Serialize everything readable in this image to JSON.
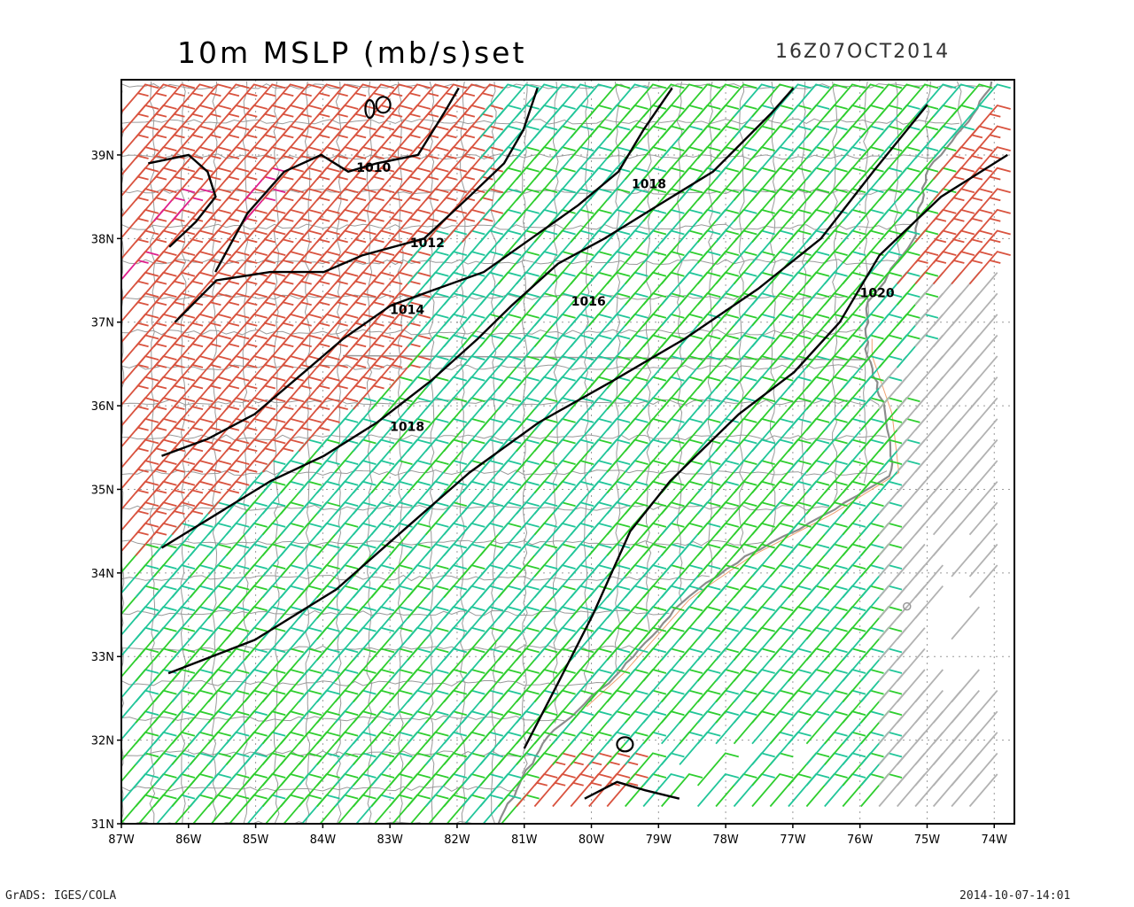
{
  "title": "10m MSLP (mb/s)set",
  "valid_time": "16Z07OCT2014",
  "footer_left": "GrADS: IGES/COLA",
  "footer_right": "2014-10-07-14:01",
  "map": {
    "lon_range": [
      -87,
      -73.7
    ],
    "lat_range": [
      31,
      39.9
    ],
    "lon_labels": [
      "87W",
      "86W",
      "85W",
      "84W",
      "83W",
      "82W",
      "81W",
      "80W",
      "79W",
      "78W",
      "77W",
      "76W",
      "75W",
      "74W"
    ],
    "lat_labels": [
      "31N",
      "32N",
      "33N",
      "34N",
      "35N",
      "36N",
      "37N",
      "38N",
      "39N"
    ],
    "isobar_labels": [
      {
        "text": "1010",
        "lon": -83.5,
        "lat": 38.8
      },
      {
        "text": "1012",
        "lon": -82.7,
        "lat": 37.9
      },
      {
        "text": "1014",
        "lon": -83.0,
        "lat": 37.1
      },
      {
        "text": "1016",
        "lon": -80.3,
        "lat": 37.2
      },
      {
        "text": "1018",
        "lon": -79.4,
        "lat": 38.6
      },
      {
        "text": "1018",
        "lon": -83.0,
        "lat": 35.7
      },
      {
        "text": "1020",
        "lon": -76.0,
        "lat": 37.3
      }
    ],
    "isobars": [
      {
        "value": "1010",
        "points": [
          [
            -86.6,
            38.9
          ],
          [
            -86.0,
            39.0
          ],
          [
            -85.7,
            38.8
          ],
          [
            -85.6,
            38.5
          ],
          [
            -85.9,
            38.2
          ],
          [
            -86.3,
            37.9
          ]
        ]
      },
      {
        "value": "1010",
        "points": [
          [
            -85.6,
            37.6
          ],
          [
            -85.1,
            38.3
          ],
          [
            -84.6,
            38.8
          ],
          [
            -84.0,
            39.0
          ],
          [
            -83.6,
            38.8
          ],
          [
            -83.2,
            38.9
          ],
          [
            -82.6,
            39.0
          ],
          [
            -82.2,
            39.5
          ],
          [
            -82.0,
            39.8
          ]
        ]
      },
      {
        "value": "1012",
        "points": [
          [
            -86.2,
            37.0
          ],
          [
            -85.6,
            37.5
          ],
          [
            -84.8,
            37.6
          ],
          [
            -84.0,
            37.6
          ],
          [
            -83.4,
            37.8
          ],
          [
            -82.5,
            38.0
          ],
          [
            -81.8,
            38.5
          ],
          [
            -81.3,
            38.9
          ],
          [
            -81.0,
            39.3
          ],
          [
            -80.8,
            39.8
          ]
        ]
      },
      {
        "value": "1014",
        "points": [
          [
            -86.4,
            35.4
          ],
          [
            -85.7,
            35.6
          ],
          [
            -85.0,
            35.9
          ],
          [
            -84.3,
            36.4
          ],
          [
            -83.7,
            36.8
          ],
          [
            -83.0,
            37.2
          ],
          [
            -82.3,
            37.4
          ],
          [
            -81.6,
            37.6
          ],
          [
            -80.9,
            38.0
          ],
          [
            -80.2,
            38.4
          ],
          [
            -79.6,
            38.8
          ],
          [
            -79.2,
            39.3
          ],
          [
            -78.8,
            39.8
          ]
        ]
      },
      {
        "value": "1016",
        "points": [
          [
            -86.4,
            34.3
          ],
          [
            -85.6,
            34.7
          ],
          [
            -84.8,
            35.1
          ],
          [
            -84.0,
            35.4
          ],
          [
            -83.2,
            35.8
          ],
          [
            -82.4,
            36.3
          ],
          [
            -81.7,
            36.8
          ],
          [
            -81.2,
            37.2
          ],
          [
            -80.5,
            37.7
          ],
          [
            -79.8,
            38.0
          ],
          [
            -79.0,
            38.4
          ],
          [
            -78.2,
            38.8
          ],
          [
            -77.3,
            39.5
          ],
          [
            -77.0,
            39.8
          ]
        ]
      },
      {
        "value": "1018",
        "points": [
          [
            -86.3,
            32.8
          ],
          [
            -85.0,
            33.2
          ],
          [
            -83.8,
            33.8
          ],
          [
            -82.8,
            34.5
          ],
          [
            -81.8,
            35.2
          ],
          [
            -80.8,
            35.8
          ],
          [
            -79.7,
            36.3
          ],
          [
            -78.6,
            36.8
          ],
          [
            -77.5,
            37.4
          ],
          [
            -76.6,
            38.0
          ],
          [
            -75.8,
            38.8
          ],
          [
            -75.0,
            39.6
          ]
        ]
      },
      {
        "value": "1020",
        "points": [
          [
            -81.0,
            31.9
          ],
          [
            -80.5,
            32.7
          ],
          [
            -80.0,
            33.5
          ],
          [
            -79.4,
            34.5
          ],
          [
            -78.8,
            35.1
          ],
          [
            -77.8,
            35.9
          ],
          [
            -77.0,
            36.4
          ],
          [
            -76.3,
            37.0
          ],
          [
            -75.7,
            37.8
          ],
          [
            -74.8,
            38.5
          ],
          [
            -73.8,
            39.0
          ]
        ]
      },
      {
        "value": "1020",
        "points": [
          [
            -80.1,
            31.3
          ],
          [
            -79.6,
            31.5
          ],
          [
            -79.2,
            31.4
          ],
          [
            -78.7,
            31.3
          ]
        ]
      }
    ],
    "barb_colors": {
      "weak": "#2fce2f",
      "moderate": "#22c69a",
      "strong": "#d9533f",
      "extreme": "#e01f8d",
      "offshore": "#b2b2b2"
    },
    "contour_color": "#000000",
    "boundary_color": "#9a9a9a",
    "coast_color": "#f0a070"
  }
}
